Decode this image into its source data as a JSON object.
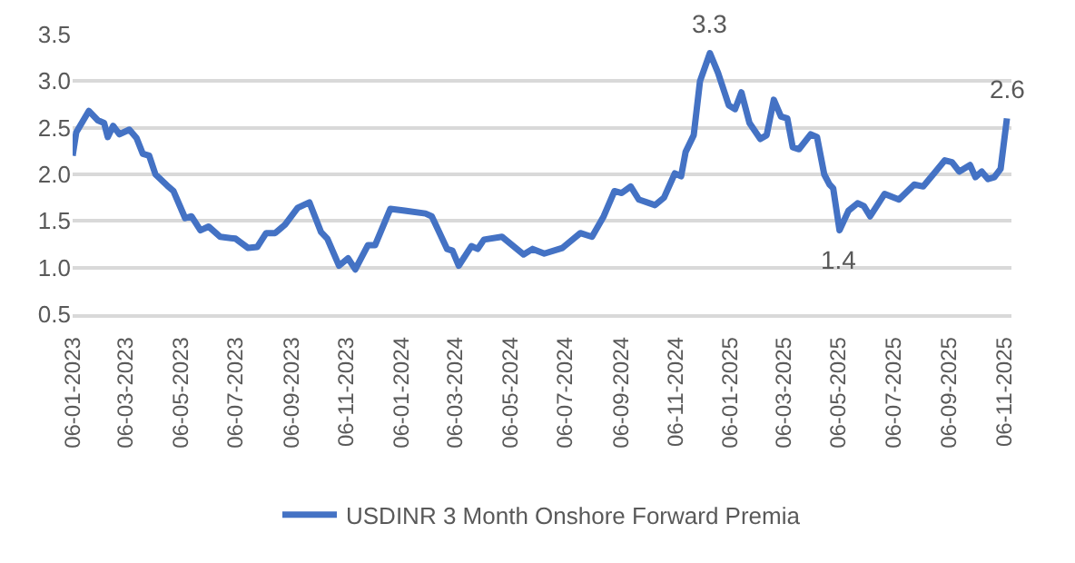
{
  "chart_data": {
    "type": "line",
    "x": [
      "2023-01-06",
      "2023-01-10",
      "2023-01-24",
      "2023-02-03",
      "2023-02-10",
      "2023-02-14",
      "2023-02-20",
      "2023-02-27",
      "2023-03-10",
      "2023-03-18",
      "2023-03-25",
      "2023-04-01",
      "2023-04-08",
      "2023-04-21",
      "2023-04-28",
      "2023-05-11",
      "2023-05-18",
      "2023-05-28",
      "2023-06-06",
      "2023-06-19",
      "2023-07-06",
      "2023-07-20",
      "2023-07-30",
      "2023-08-09",
      "2023-08-19",
      "2023-08-30",
      "2023-09-13",
      "2023-09-26",
      "2023-10-09",
      "2023-10-16",
      "2023-10-29",
      "2023-11-08",
      "2023-11-16",
      "2023-11-30",
      "2023-12-08",
      "2023-12-25",
      "2024-01-10",
      "2024-02-02",
      "2024-02-09",
      "2024-02-26",
      "2024-03-03",
      "2024-03-10",
      "2024-03-24",
      "2024-03-31",
      "2024-04-07",
      "2024-04-27",
      "2024-05-21",
      "2024-05-31",
      "2024-06-13",
      "2024-07-03",
      "2024-07-23",
      "2024-08-05",
      "2024-08-18",
      "2024-08-30",
      "2024-09-07",
      "2024-09-17",
      "2024-09-26",
      "2024-10-14",
      "2024-10-24",
      "2024-11-05",
      "2024-11-12",
      "2024-11-17",
      "2024-11-26",
      "2024-12-03",
      "2024-12-14",
      "2024-12-23",
      "2025-01-04",
      "2025-01-11",
      "2025-01-18",
      "2025-01-27",
      "2025-02-08",
      "2025-02-15",
      "2025-02-23",
      "2025-03-03",
      "2025-03-10",
      "2025-03-16",
      "2025-03-23",
      "2025-04-05",
      "2025-04-12",
      "2025-04-20",
      "2025-04-26",
      "2025-04-30",
      "2025-05-07",
      "2025-05-17",
      "2025-05-27",
      "2025-06-03",
      "2025-06-10",
      "2025-06-26",
      "2025-07-12",
      "2025-07-29",
      "2025-08-08",
      "2025-08-20",
      "2025-09-01",
      "2025-09-09",
      "2025-09-17",
      "2025-09-29",
      "2025-10-05",
      "2025-10-12",
      "2025-10-19",
      "2025-10-26",
      "2025-11-02",
      "2025-11-09"
    ],
    "series": [
      {
        "name": "USDINR 3 Month Onshore Forward Premia",
        "color": "#4472c4",
        "values": [
          2.2,
          2.45,
          2.68,
          2.58,
          2.55,
          2.4,
          2.52,
          2.43,
          2.48,
          2.39,
          2.22,
          2.2,
          2.0,
          1.88,
          1.82,
          1.53,
          1.55,
          1.4,
          1.44,
          1.33,
          1.31,
          1.21,
          1.22,
          1.37,
          1.37,
          1.46,
          1.64,
          1.7,
          1.38,
          1.31,
          1.02,
          1.1,
          0.98,
          1.24,
          1.24,
          1.63,
          1.61,
          1.58,
          1.55,
          1.2,
          1.18,
          1.02,
          1.23,
          1.2,
          1.3,
          1.33,
          1.14,
          1.2,
          1.15,
          1.21,
          1.37,
          1.33,
          1.55,
          1.82,
          1.8,
          1.87,
          1.73,
          1.67,
          1.75,
          2.01,
          1.98,
          2.24,
          2.42,
          3.0,
          3.3,
          3.09,
          2.74,
          2.7,
          2.88,
          2.55,
          2.38,
          2.42,
          2.8,
          2.62,
          2.6,
          2.29,
          2.27,
          2.43,
          2.4,
          2.0,
          1.89,
          1.85,
          1.4,
          1.61,
          1.69,
          1.66,
          1.55,
          1.79,
          1.73,
          1.89,
          1.87,
          2.01,
          2.15,
          2.13,
          2.03,
          2.1,
          1.97,
          2.03,
          1.95,
          1.97,
          2.06,
          2.6
        ]
      }
    ],
    "xlim": [
      "2023-01-06",
      "2025-11-14"
    ],
    "xticks": [
      {
        "value": "2023-01-06",
        "label": "06-01-2023"
      },
      {
        "value": "2023-03-06",
        "label": "06-03-2023"
      },
      {
        "value": "2023-05-06",
        "label": "06-05-2023"
      },
      {
        "value": "2023-07-06",
        "label": "06-07-2023"
      },
      {
        "value": "2023-09-06",
        "label": "06-09-2023"
      },
      {
        "value": "2023-11-06",
        "label": "06-11-2023"
      },
      {
        "value": "2024-01-06",
        "label": "06-01-2024"
      },
      {
        "value": "2024-03-06",
        "label": "06-03-2024"
      },
      {
        "value": "2024-05-06",
        "label": "06-05-2024"
      },
      {
        "value": "2024-07-06",
        "label": "06-07-2024"
      },
      {
        "value": "2024-09-06",
        "label": "06-09-2024"
      },
      {
        "value": "2024-11-06",
        "label": "06-11-2024"
      },
      {
        "value": "2025-01-06",
        "label": "06-01-2025"
      },
      {
        "value": "2025-03-06",
        "label": "06-03-2025"
      },
      {
        "value": "2025-05-06",
        "label": "06-05-2025"
      },
      {
        "value": "2025-07-06",
        "label": "06-07-2025"
      },
      {
        "value": "2025-09-06",
        "label": "06-09-2025"
      },
      {
        "value": "2025-11-06",
        "label": "06-11-2025"
      }
    ],
    "ylim": [
      0.5,
      3.5
    ],
    "yticks": [
      {
        "value": 0.5,
        "label": "0.5"
      },
      {
        "value": 1.0,
        "label": "1.0"
      },
      {
        "value": 1.5,
        "label": "1.5"
      },
      {
        "value": 2.0,
        "label": "2.0"
      },
      {
        "value": 2.5,
        "label": "2.5"
      },
      {
        "value": 3.0,
        "label": "3.0"
      },
      {
        "value": 3.5,
        "label": "3.5"
      }
    ],
    "annotations": [
      {
        "text": "3.3",
        "x": "2024-12-14",
        "y": 3.3
      },
      {
        "text": "1.4",
        "x": "2025-05-07",
        "y": 1.4
      },
      {
        "text": "2.6",
        "x": "2025-11-09",
        "y": 2.6
      }
    ],
    "grid": "y",
    "legend": "bottom",
    "marker": "none",
    "line_style": "solid"
  }
}
